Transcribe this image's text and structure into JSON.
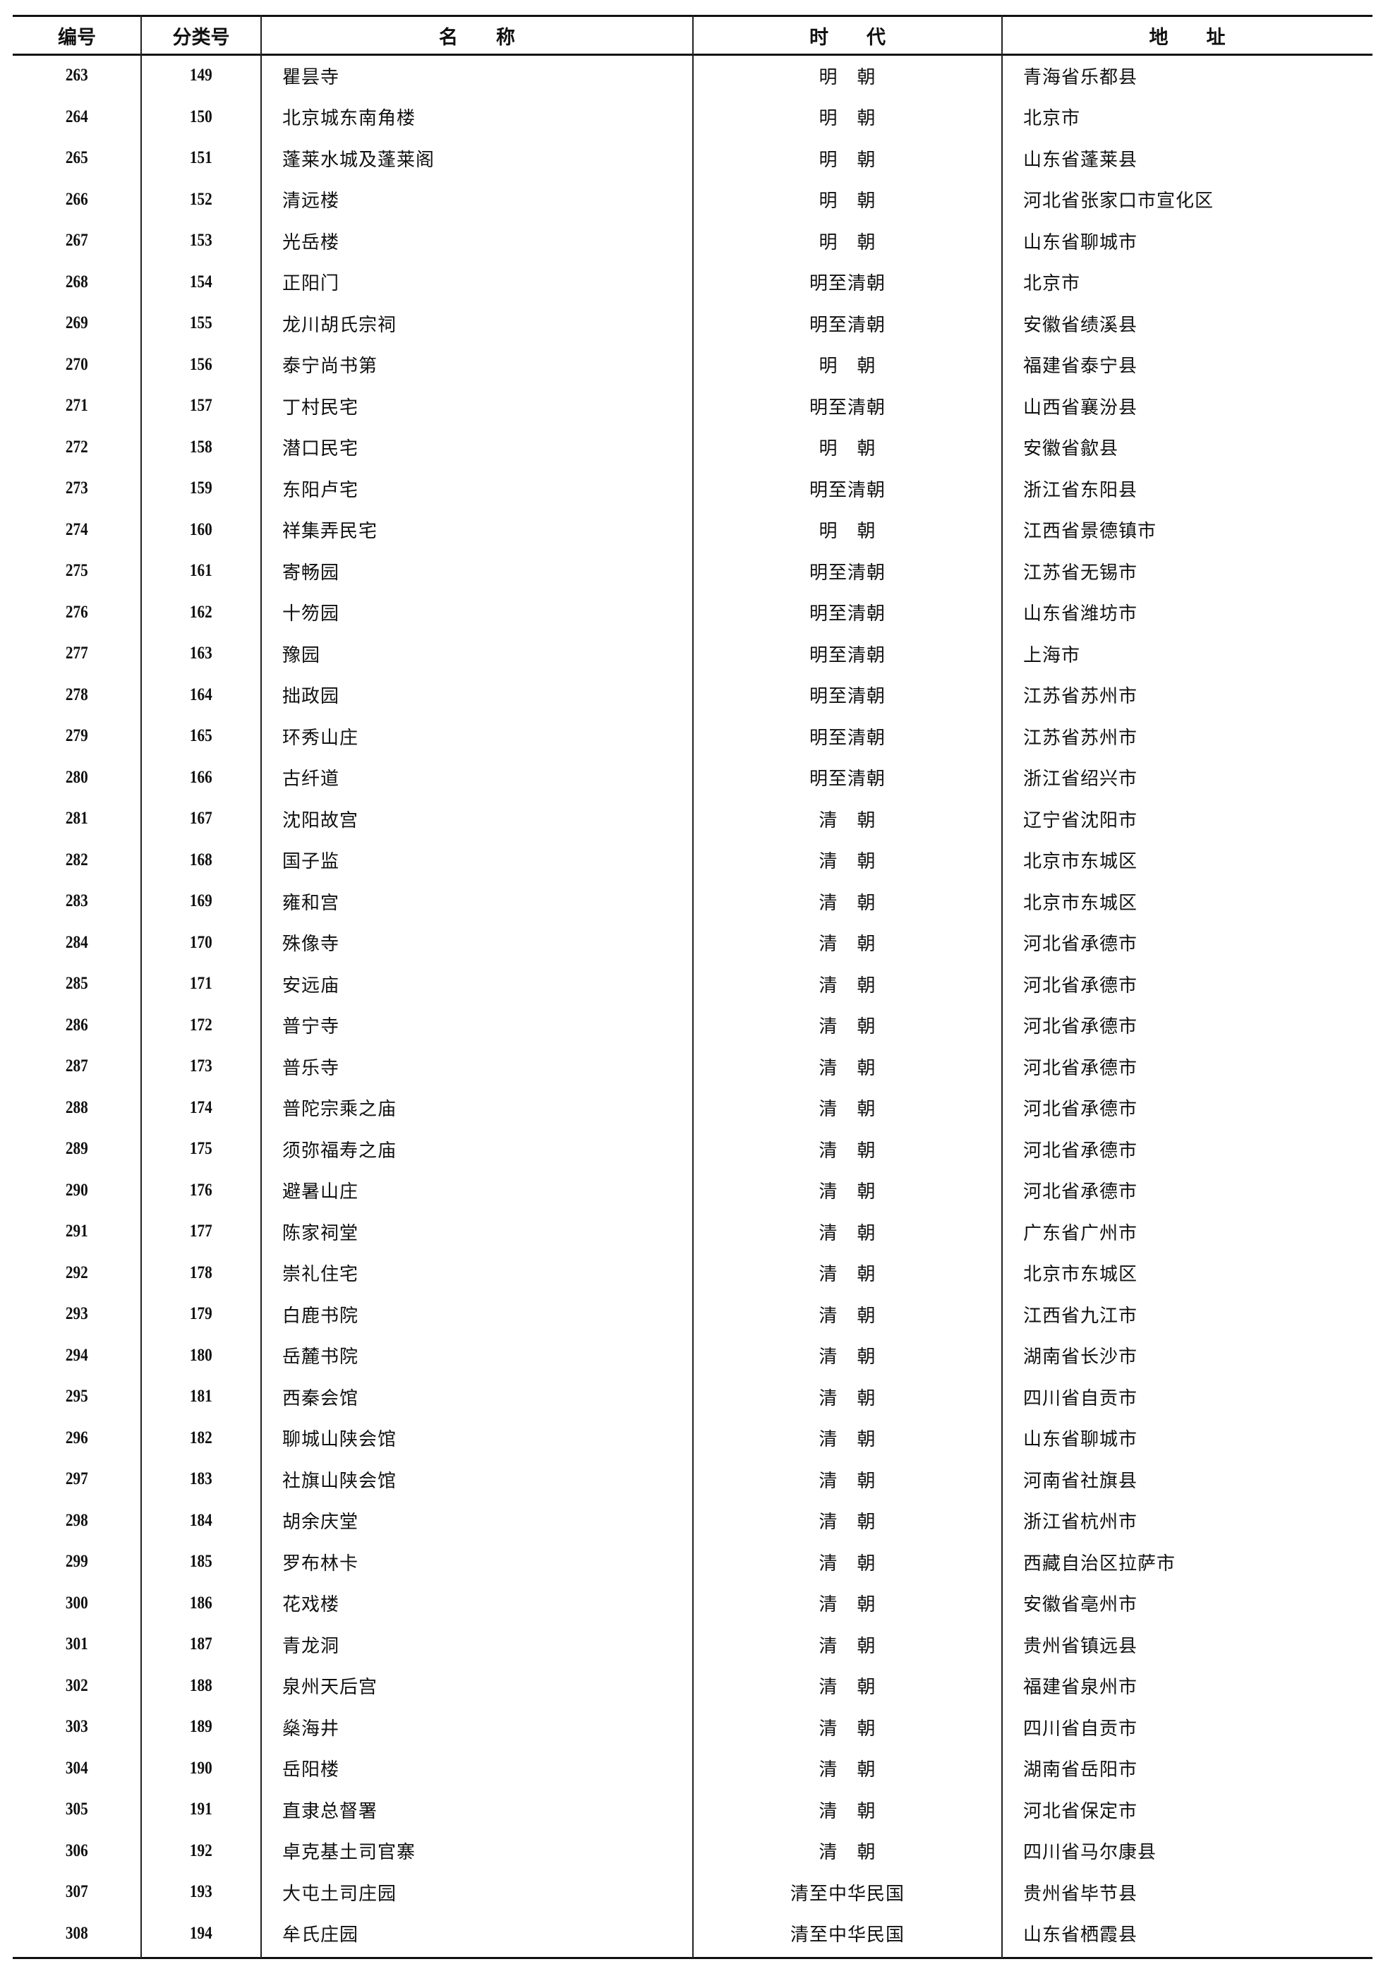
{
  "header": {
    "id": "编号",
    "class_no": "分类号",
    "name": "名　　称",
    "era": "时　　代",
    "address": "地　　址"
  },
  "rows": [
    [
      "263",
      "149",
      "瞿昙寺",
      "明　朝",
      "青海省乐都县"
    ],
    [
      "264",
      "150",
      "北京城东南角楼",
      "明　朝",
      "北京市"
    ],
    [
      "265",
      "151",
      "蓬莱水城及蓬莱阁",
      "明　朝",
      "山东省蓬莱县"
    ],
    [
      "266",
      "152",
      "清远楼",
      "明　朝",
      "河北省张家口市宣化区"
    ],
    [
      "267",
      "153",
      "光岳楼",
      "明　朝",
      "山东省聊城市"
    ],
    [
      "268",
      "154",
      "正阳门",
      "明至清朝",
      "北京市"
    ],
    [
      "269",
      "155",
      "龙川胡氏宗祠",
      "明至清朝",
      "安徽省绩溪县"
    ],
    [
      "270",
      "156",
      "泰宁尚书第",
      "明　朝",
      "福建省泰宁县"
    ],
    [
      "271",
      "157",
      "丁村民宅",
      "明至清朝",
      "山西省襄汾县"
    ],
    [
      "272",
      "158",
      "潜口民宅",
      "明　朝",
      "安徽省歙县"
    ],
    [
      "273",
      "159",
      "东阳卢宅",
      "明至清朝",
      "浙江省东阳县"
    ],
    [
      "274",
      "160",
      "祥集弄民宅",
      "明　朝",
      "江西省景德镇市"
    ],
    [
      "275",
      "161",
      "寄畅园",
      "明至清朝",
      "江苏省无锡市"
    ],
    [
      "276",
      "162",
      "十笏园",
      "明至清朝",
      "山东省潍坊市"
    ],
    [
      "277",
      "163",
      "豫园",
      "明至清朝",
      "上海市"
    ],
    [
      "278",
      "164",
      "拙政园",
      "明至清朝",
      "江苏省苏州市"
    ],
    [
      "279",
      "165",
      "环秀山庄",
      "明至清朝",
      "江苏省苏州市"
    ],
    [
      "280",
      "166",
      "古纤道",
      "明至清朝",
      "浙江省绍兴市"
    ],
    [
      "281",
      "167",
      "沈阳故宫",
      "清　朝",
      "辽宁省沈阳市"
    ],
    [
      "282",
      "168",
      "国子监",
      "清　朝",
      "北京市东城区"
    ],
    [
      "283",
      "169",
      "雍和宫",
      "清　朝",
      "北京市东城区"
    ],
    [
      "284",
      "170",
      "殊像寺",
      "清　朝",
      "河北省承德市"
    ],
    [
      "285",
      "171",
      "安远庙",
      "清　朝",
      "河北省承德市"
    ],
    [
      "286",
      "172",
      "普宁寺",
      "清　朝",
      "河北省承德市"
    ],
    [
      "287",
      "173",
      "普乐寺",
      "清　朝",
      "河北省承德市"
    ],
    [
      "288",
      "174",
      "普陀宗乘之庙",
      "清　朝",
      "河北省承德市"
    ],
    [
      "289",
      "175",
      "须弥福寿之庙",
      "清　朝",
      "河北省承德市"
    ],
    [
      "290",
      "176",
      "避暑山庄",
      "清　朝",
      "河北省承德市"
    ],
    [
      "291",
      "177",
      "陈家祠堂",
      "清　朝",
      "广东省广州市"
    ],
    [
      "292",
      "178",
      "崇礼住宅",
      "清　朝",
      "北京市东城区"
    ],
    [
      "293",
      "179",
      "白鹿书院",
      "清　朝",
      "江西省九江市"
    ],
    [
      "294",
      "180",
      "岳麓书院",
      "清　朝",
      "湖南省长沙市"
    ],
    [
      "295",
      "181",
      "西秦会馆",
      "清　朝",
      "四川省自贡市"
    ],
    [
      "296",
      "182",
      "聊城山陕会馆",
      "清　朝",
      "山东省聊城市"
    ],
    [
      "297",
      "183",
      "社旗山陕会馆",
      "清　朝",
      "河南省社旗县"
    ],
    [
      "298",
      "184",
      "胡余庆堂",
      "清　朝",
      "浙江省杭州市"
    ],
    [
      "299",
      "185",
      "罗布林卡",
      "清　朝",
      "西藏自治区拉萨市"
    ],
    [
      "300",
      "186",
      "花戏楼",
      "清　朝",
      "安徽省亳州市"
    ],
    [
      "301",
      "187",
      "青龙洞",
      "清　朝",
      "贵州省镇远县"
    ],
    [
      "302",
      "188",
      "泉州天后宫",
      "清　朝",
      "福建省泉州市"
    ],
    [
      "303",
      "189",
      "燊海井",
      "清　朝",
      "四川省自贡市"
    ],
    [
      "304",
      "190",
      "岳阳楼",
      "清　朝",
      "湖南省岳阳市"
    ],
    [
      "305",
      "191",
      "直隶总督署",
      "清　朝",
      "河北省保定市"
    ],
    [
      "306",
      "192",
      "卓克基土司官寨",
      "清　朝",
      "四川省马尔康县"
    ],
    [
      "307",
      "193",
      "大屯土司庄园",
      "清至中华民国",
      "贵州省毕节县"
    ],
    [
      "308",
      "194",
      "牟氏庄园",
      "清至中华民国",
      "山东省栖霞县"
    ]
  ]
}
